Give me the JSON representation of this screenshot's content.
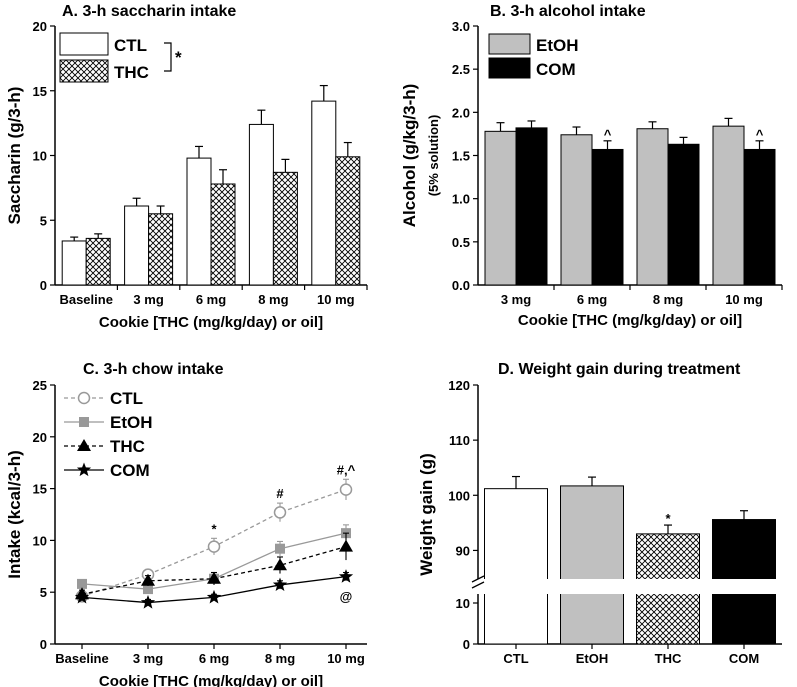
{
  "chart_data": [
    {
      "id": "A",
      "type": "bar",
      "title": "A. 3-h saccharin intake",
      "xlabel": "Cookie [THC (mg/kg/day) or oil]",
      "ylabel": "Saccharin (g/3-h)",
      "ylim": [
        0,
        20
      ],
      "yticks": [
        "0",
        "5",
        "10",
        "15",
        "20"
      ],
      "categories": [
        "Baseline",
        "3 mg",
        "6 mg",
        "8 mg",
        "10 mg"
      ],
      "series": [
        {
          "name": "CTL",
          "fill": "#ffffff",
          "values": [
            3.4,
            6.1,
            9.8,
            12.4,
            14.2
          ],
          "err": [
            0.3,
            0.6,
            0.9,
            1.1,
            1.2
          ]
        },
        {
          "name": "THC",
          "fill": "hatch",
          "values": [
            3.6,
            5.5,
            7.8,
            8.7,
            9.9
          ],
          "err": [
            0.35,
            0.6,
            1.1,
            1.0,
            1.1
          ]
        }
      ],
      "legend_note": "*"
    },
    {
      "id": "B",
      "type": "bar",
      "title": "B. 3-h alcohol intake",
      "xlabel": "Cookie [THC (mg/kg/day) or oil]",
      "ylabel": "Alcohol (g/kg/3-h)",
      "ylabel2": "(5% solution)",
      "ylim": [
        0,
        3.0
      ],
      "yticks": [
        "0.0",
        "0.5",
        "1.0",
        "1.5",
        "2.0",
        "2.5",
        "3.0"
      ],
      "categories": [
        "3 mg",
        "6 mg",
        "8 mg",
        "10 mg"
      ],
      "series": [
        {
          "name": "EtOH",
          "fill": "#c0c0c0",
          "values": [
            1.78,
            1.74,
            1.81,
            1.84
          ],
          "err": [
            0.1,
            0.09,
            0.08,
            0.09
          ]
        },
        {
          "name": "COM",
          "fill": "#000000",
          "values": [
            1.82,
            1.57,
            1.63,
            1.57
          ],
          "err": [
            0.08,
            0.1,
            0.08,
            0.1
          ]
        }
      ],
      "annotations": [
        {
          "text": "^",
          "category": 1,
          "series": 1
        },
        {
          "text": "^",
          "category": 3,
          "series": 1
        }
      ]
    },
    {
      "id": "C",
      "type": "line",
      "title": "C. 3-h chow intake",
      "xlabel": "Cookie [THC (mg/kg/day) or oil]",
      "ylabel": "Intake (kcal/3-h)",
      "ylim": [
        0,
        25
      ],
      "yticks": [
        "0",
        "5",
        "10",
        "15",
        "20",
        "25"
      ],
      "categories": [
        "Baseline",
        "3 mg",
        "6 mg",
        "8 mg",
        "10 mg"
      ],
      "series": [
        {
          "name": "CTL",
          "marker": "circle",
          "dash": "4,3",
          "color": "#999999",
          "values": [
            4.6,
            6.7,
            9.4,
            12.7,
            14.9
          ],
          "err": [
            0.4,
            0.5,
            0.8,
            0.9,
            1.0
          ]
        },
        {
          "name": "EtOH",
          "marker": "square",
          "dash": "",
          "color": "#999999",
          "values": [
            5.8,
            5.3,
            6.3,
            9.2,
            10.7
          ],
          "err": [
            0.4,
            0.4,
            0.6,
            0.7,
            0.8
          ]
        },
        {
          "name": "THC",
          "marker": "triangle",
          "dash": "4,3",
          "color": "#000000",
          "values": [
            4.8,
            6.1,
            6.3,
            7.6,
            9.4
          ],
          "err": [
            0.4,
            0.5,
            0.6,
            0.8,
            1.3
          ]
        },
        {
          "name": "COM",
          "marker": "star",
          "dash": "",
          "color": "#000000",
          "values": [
            4.5,
            4.0,
            4.5,
            5.7,
            6.5
          ],
          "err": [
            0.3,
            0.3,
            0.3,
            0.4,
            0.4
          ]
        }
      ],
      "annotations": [
        {
          "text": "*",
          "category": 2,
          "series": 0
        },
        {
          "text": "#",
          "category": 3,
          "series": 0
        },
        {
          "text": "#,^",
          "category": 4,
          "series": 0
        },
        {
          "text": "@",
          "category": 4,
          "series": 3
        }
      ]
    },
    {
      "id": "D",
      "type": "bar",
      "title": "D. Weight gain during treatment",
      "xlabel": "",
      "ylabel": "Weight gain (g)",
      "ylim": [
        0,
        120
      ],
      "axis_break": [
        10,
        85
      ],
      "yticks_lower": [
        "0",
        "10"
      ],
      "yticks_upper": [
        "90",
        "100",
        "110",
        "120"
      ],
      "categories": [
        "CTL",
        "EtOH",
        "THC",
        "COM"
      ],
      "fills": [
        "#ffffff",
        "#c0c0c0",
        "hatch",
        "#000000"
      ],
      "values": [
        101.2,
        101.7,
        93.0,
        95.6
      ],
      "err": [
        2.2,
        1.6,
        1.6,
        1.6
      ],
      "annotations": [
        {
          "text": "*",
          "category": 2
        }
      ]
    }
  ]
}
